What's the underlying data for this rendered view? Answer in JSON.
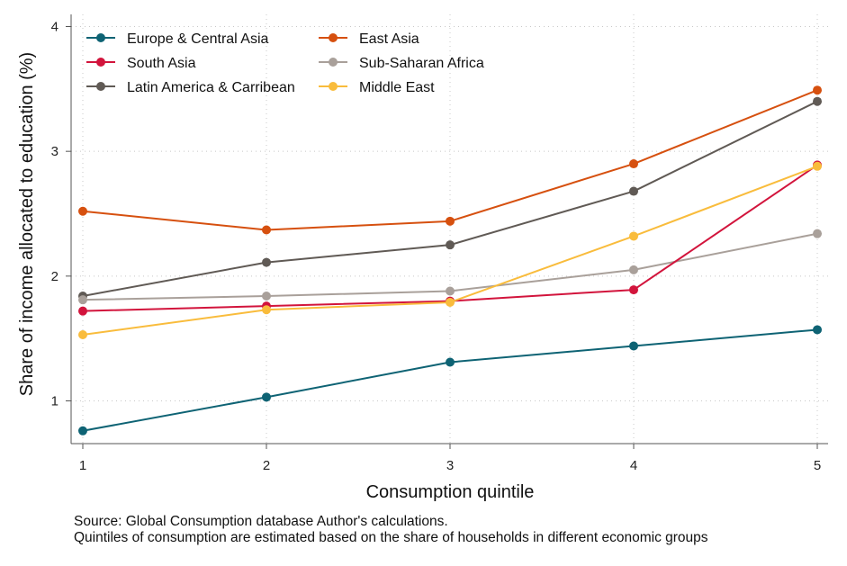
{
  "chart_data": {
    "type": "line",
    "categories": [
      1,
      2,
      3,
      4,
      5
    ],
    "xlabel": "Consumption quintile",
    "ylabel": "Share of income allocated to education (%)",
    "ylim": [
      0.75,
      4
    ],
    "yticks": [
      1,
      2,
      3,
      4
    ],
    "grid": true,
    "legend_position": "top-left",
    "series": [
      {
        "name": "Europe & Central Asia",
        "color": "#0e6374",
        "values": [
          0.76,
          1.03,
          1.31,
          1.44,
          1.57
        ]
      },
      {
        "name": "Latin America & Carribean",
        "color": "#605a55",
        "values": [
          1.84,
          2.11,
          2.25,
          2.68,
          3.4
        ]
      },
      {
        "name": "Sub-Saharan Africa",
        "color": "#a9a09a",
        "values": [
          1.81,
          1.84,
          1.88,
          2.05,
          2.34
        ]
      },
      {
        "name": "South Asia",
        "color": "#d2143c",
        "values": [
          1.72,
          1.76,
          1.8,
          1.89,
          2.89
        ]
      },
      {
        "name": "East Asia",
        "color": "#d6500f",
        "values": [
          2.52,
          2.37,
          2.44,
          2.9,
          3.49
        ]
      },
      {
        "name": "Middle East",
        "color": "#f9bc3c",
        "values": [
          1.53,
          1.73,
          1.79,
          2.32,
          2.88
        ]
      }
    ]
  },
  "footnote": {
    "line1": "Source: Global Consumption database Author's calculations.",
    "line2": "Quintiles of consumption are estimated based on the share of households in different economic groups"
  }
}
